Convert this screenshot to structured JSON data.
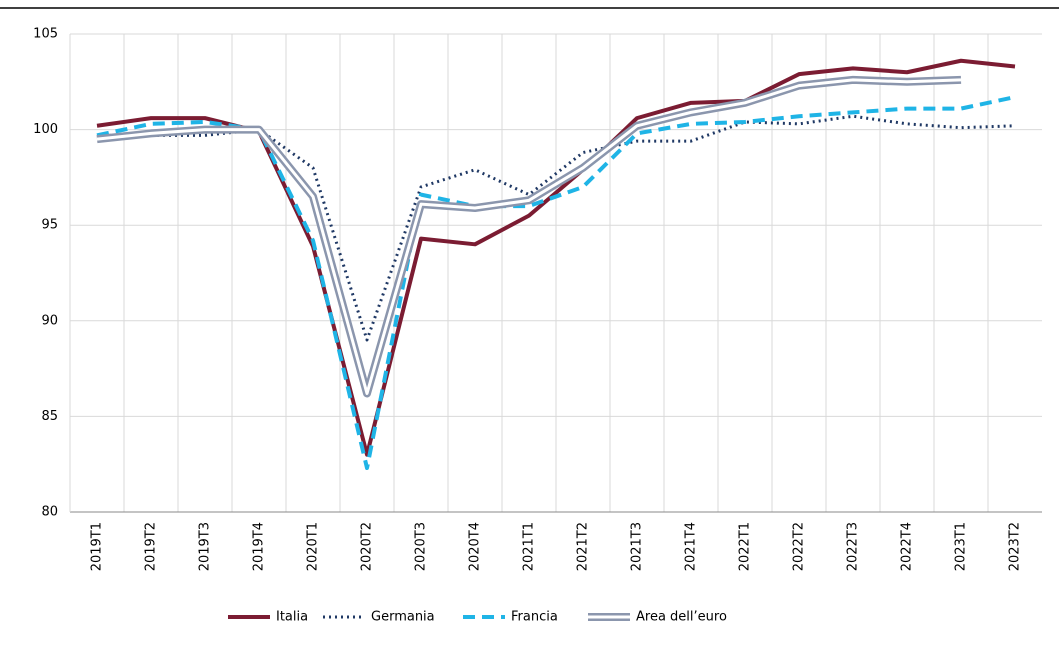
{
  "chart_data": {
    "type": "line",
    "categories": [
      "2019T1",
      "2019T2",
      "2019T3",
      "2019T4",
      "2020T1",
      "2020T2",
      "2020T3",
      "2020T4",
      "2021T1",
      "2021T2",
      "2021T3",
      "2021T4",
      "2022T1",
      "2022T2",
      "2022T3",
      "2022T4",
      "2023T1",
      "2023T2"
    ],
    "series": [
      {
        "name": "Italia",
        "color": "#7b1c32",
        "style": "solid",
        "values": [
          100.2,
          100.6,
          100.6,
          99.9,
          93.9,
          83.0,
          94.3,
          94.0,
          95.5,
          97.9,
          100.6,
          101.4,
          101.5,
          102.9,
          103.2,
          103.0,
          103.6,
          103.3
        ]
      },
      {
        "name": "Germania",
        "color": "#1f3864",
        "style": "dotted",
        "values": [
          99.7,
          99.7,
          99.7,
          100.0,
          98.0,
          89.0,
          97.0,
          97.9,
          96.6,
          98.8,
          99.4,
          99.4,
          100.4,
          100.3,
          100.7,
          100.3,
          100.1,
          100.2
        ]
      },
      {
        "name": "Francia",
        "color": "#1fb4e6",
        "style": "dashed",
        "values": [
          99.7,
          100.3,
          100.4,
          100.0,
          94.2,
          82.3,
          96.6,
          96.0,
          96.0,
          97.0,
          99.8,
          100.3,
          100.4,
          100.7,
          100.9,
          101.1,
          101.1,
          101.7
        ]
      },
      {
        "name": "Area dell’euro",
        "color": "#8b96ad",
        "style": "double",
        "values": [
          99.5,
          99.8,
          100.0,
          100.0,
          96.5,
          86.2,
          96.1,
          95.9,
          96.3,
          98.0,
          100.2,
          100.9,
          101.4,
          102.3,
          102.6,
          102.5,
          102.6,
          null
        ]
      }
    ],
    "ylim": [
      80,
      105
    ],
    "yticks": [
      80,
      85,
      90,
      95,
      100,
      105
    ],
    "grid": true,
    "legend": "bottom"
  }
}
